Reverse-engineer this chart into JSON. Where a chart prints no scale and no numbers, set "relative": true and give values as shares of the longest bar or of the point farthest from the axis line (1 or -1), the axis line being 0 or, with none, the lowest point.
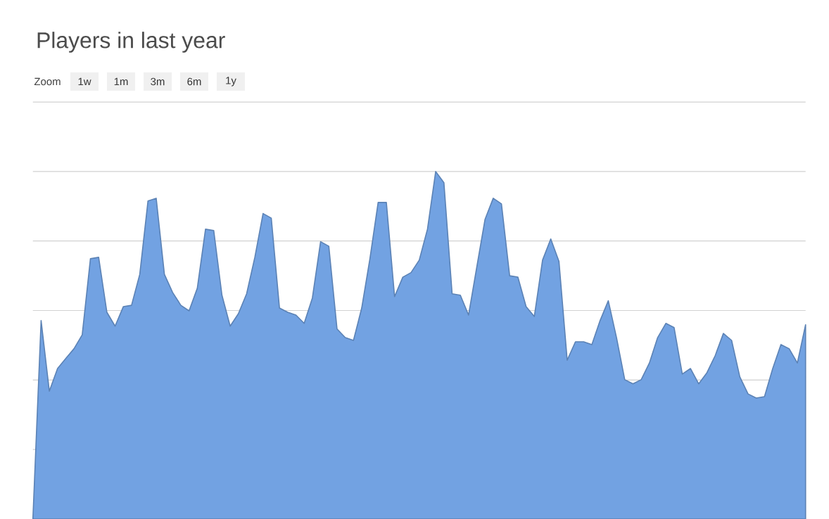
{
  "chart_data": {
    "type": "area",
    "title": "Players in last year",
    "annotations": [
      "Zoom",
      "1w",
      "1m",
      "3m",
      "6m",
      "1y"
    ],
    "relative": true,
    "grid": "y",
    "color": "#72a2e2",
    "categories": [
      null,
      null,
      null,
      null,
      null,
      null,
      null,
      null,
      null,
      null,
      null,
      null,
      null,
      null,
      null,
      null,
      null,
      null,
      null,
      null,
      null,
      null,
      null,
      null,
      null,
      null,
      null,
      null,
      null,
      null,
      null,
      null,
      null,
      null,
      null,
      null,
      null,
      null,
      null,
      null,
      null,
      null,
      null,
      null,
      null,
      null,
      null,
      null,
      null,
      null,
      null,
      null,
      null,
      null,
      null,
      null,
      null,
      null,
      null,
      null,
      null,
      null,
      null,
      null,
      null,
      null,
      null,
      null,
      null,
      null,
      null,
      null,
      null,
      null,
      null,
      null,
      null,
      null,
      null,
      null,
      null,
      null,
      null,
      null,
      null,
      null,
      null,
      null,
      null,
      null,
      null,
      null,
      null,
      null,
      null
    ],
    "values": [
      0,
      0.571,
      0.368,
      0.433,
      0.462,
      0.49,
      0.53,
      0.749,
      0.753,
      0.595,
      0.555,
      0.611,
      0.615,
      0.704,
      0.915,
      0.923,
      0.704,
      0.652,
      0.615,
      0.599,
      0.664,
      0.834,
      0.83,
      0.644,
      0.555,
      0.591,
      0.648,
      0.753,
      0.879,
      0.866,
      0.607,
      0.595,
      0.587,
      0.563,
      0.636,
      0.798,
      0.785,
      0.547,
      0.522,
      0.514,
      0.607,
      0.749,
      0.911,
      0.911,
      0.64,
      0.696,
      0.709,
      0.745,
      0.834,
      1,
      0.968,
      0.648,
      0.644,
      0.587,
      0.725,
      0.862,
      0.923,
      0.907,
      0.7,
      0.696,
      0.611,
      0.583,
      0.745,
      0.806,
      0.741,
      0.457,
      0.51,
      0.51,
      0.502,
      0.571,
      0.628,
      0.522,
      0.401,
      0.389,
      0.401,
      0.449,
      0.522,
      0.563,
      0.551,
      0.417,
      0.433,
      0.389,
      0.421,
      0.47,
      0.534,
      0.514,
      0.409,
      0.36,
      0.348,
      0.352,
      0.433,
      0.502,
      0.49,
      0.449,
      0.559
    ]
  }
}
